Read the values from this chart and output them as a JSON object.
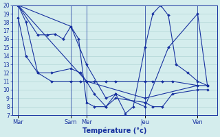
{
  "background_color": "#d4eded",
  "grid_color": "#a8d0d0",
  "line_color": "#1832a0",
  "ylim": [
    7,
    20
  ],
  "yticks": [
    7,
    8,
    9,
    10,
    11,
    12,
    13,
    14,
    15,
    16,
    17,
    18,
    19,
    20
  ],
  "xlabel": "Température (°c)",
  "xlim": [
    0,
    10.5
  ],
  "day_ticks": [
    0.3,
    3.0,
    3.8,
    6.8,
    9.5
  ],
  "day_labels": [
    "Mar",
    "Sam",
    "Mer",
    "Jeu",
    "Ven"
  ],
  "vlines": [
    0.3,
    3.0,
    3.8,
    6.8,
    9.5
  ],
  "series": [
    {
      "x": [
        0.3,
        0.7,
        1.3,
        2.0,
        3.0,
        3.5,
        3.8,
        4.2,
        4.8,
        5.3,
        6.8,
        7.2,
        7.7,
        8.2,
        9.5,
        10.0
      ],
      "y": [
        20,
        18,
        12,
        11,
        11,
        11,
        11,
        11,
        11,
        11,
        11,
        11,
        11,
        11,
        10.5,
        10.5
      ]
    },
    {
      "x": [
        0.3,
        3.8,
        6.8,
        9.5
      ],
      "y": [
        20,
        11,
        9,
        10.5
      ]
    },
    {
      "x": [
        0.3,
        0.7,
        1.3,
        2.0,
        3.0,
        3.5,
        3.8,
        4.2,
        4.8,
        5.3,
        6.8,
        7.2,
        7.7,
        8.2,
        9.5,
        10.0
      ],
      "y": [
        18.5,
        14,
        12,
        12,
        12.5,
        12,
        11,
        9.5,
        8,
        9,
        8.5,
        8,
        8,
        9.5,
        10,
        10
      ]
    },
    {
      "x": [
        0.3,
        1.3,
        1.8,
        2.2,
        2.6,
        3.0,
        3.4,
        3.8,
        4.2,
        4.8,
        5.3,
        5.8,
        6.2,
        6.8,
        7.2,
        7.6,
        8.0,
        8.4,
        9.0,
        9.5,
        10.0
      ],
      "y": [
        20,
        16.5,
        16.5,
        16.6,
        16,
        17.5,
        16,
        8.5,
        8,
        8,
        9.5,
        7.2,
        8,
        15,
        19,
        20,
        18.8,
        13,
        12,
        11,
        10.5
      ]
    },
    {
      "x": [
        0.3,
        3.0,
        3.8,
        4.8,
        5.3,
        6.8,
        8.0,
        9.5,
        10.0
      ],
      "y": [
        20,
        17.5,
        13,
        9,
        9.5,
        8,
        15,
        19,
        10.5
      ]
    }
  ]
}
